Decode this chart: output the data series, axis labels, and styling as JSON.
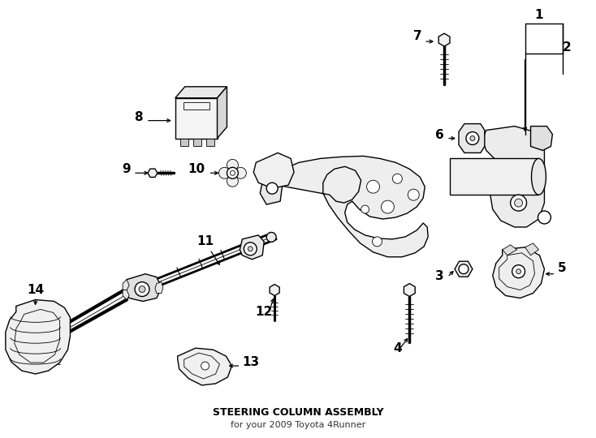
{
  "title": "STEERING COLUMN ASSEMBLY",
  "subtitle": "for your 2009 Toyota 4Runner",
  "bg_color": "#ffffff",
  "line_color": "#000000",
  "lw_main": 1.0,
  "lw_thin": 0.6,
  "lw_thick": 1.5,
  "fig_width": 7.34,
  "fig_height": 5.4,
  "dpi": 100,
  "font_size_label": 11,
  "font_size_title": 9,
  "font_size_sub": 8
}
